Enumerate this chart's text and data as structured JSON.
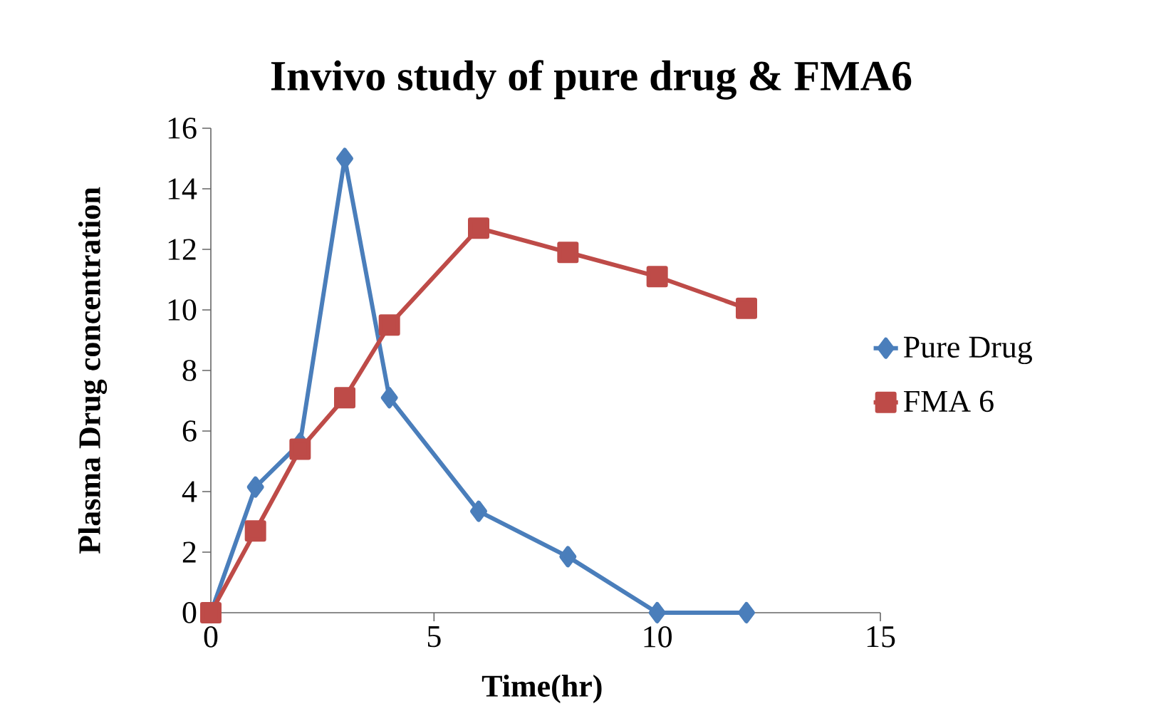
{
  "chart_data": {
    "type": "line",
    "title": "Invivo study of pure drug & FMA6",
    "xlabel": "Time(hr)",
    "ylabel": "Plasma Drug concentration",
    "x": [
      0,
      1,
      2,
      3,
      4,
      6,
      8,
      10,
      12
    ],
    "series": [
      {
        "name": "Pure Drug",
        "color": "#4a7ebb",
        "marker": "diamond",
        "values": [
          0,
          4.15,
          5.6,
          15,
          7.1,
          3.35,
          1.85,
          0,
          0
        ]
      },
      {
        "name": "FMA 6",
        "color": "#be4b48",
        "marker": "square",
        "values": [
          0,
          2.7,
          5.4,
          7.1,
          9.5,
          12.7,
          11.9,
          11.1,
          10.05
        ]
      }
    ],
    "xlim": [
      0,
      15
    ],
    "xticks": [
      0,
      5,
      10,
      15
    ],
    "ylim": [
      0,
      16
    ],
    "yticks": [
      0,
      2,
      4,
      6,
      8,
      10,
      12,
      14,
      16
    ],
    "grid": false,
    "legend": "right",
    "line_style": "solid"
  }
}
